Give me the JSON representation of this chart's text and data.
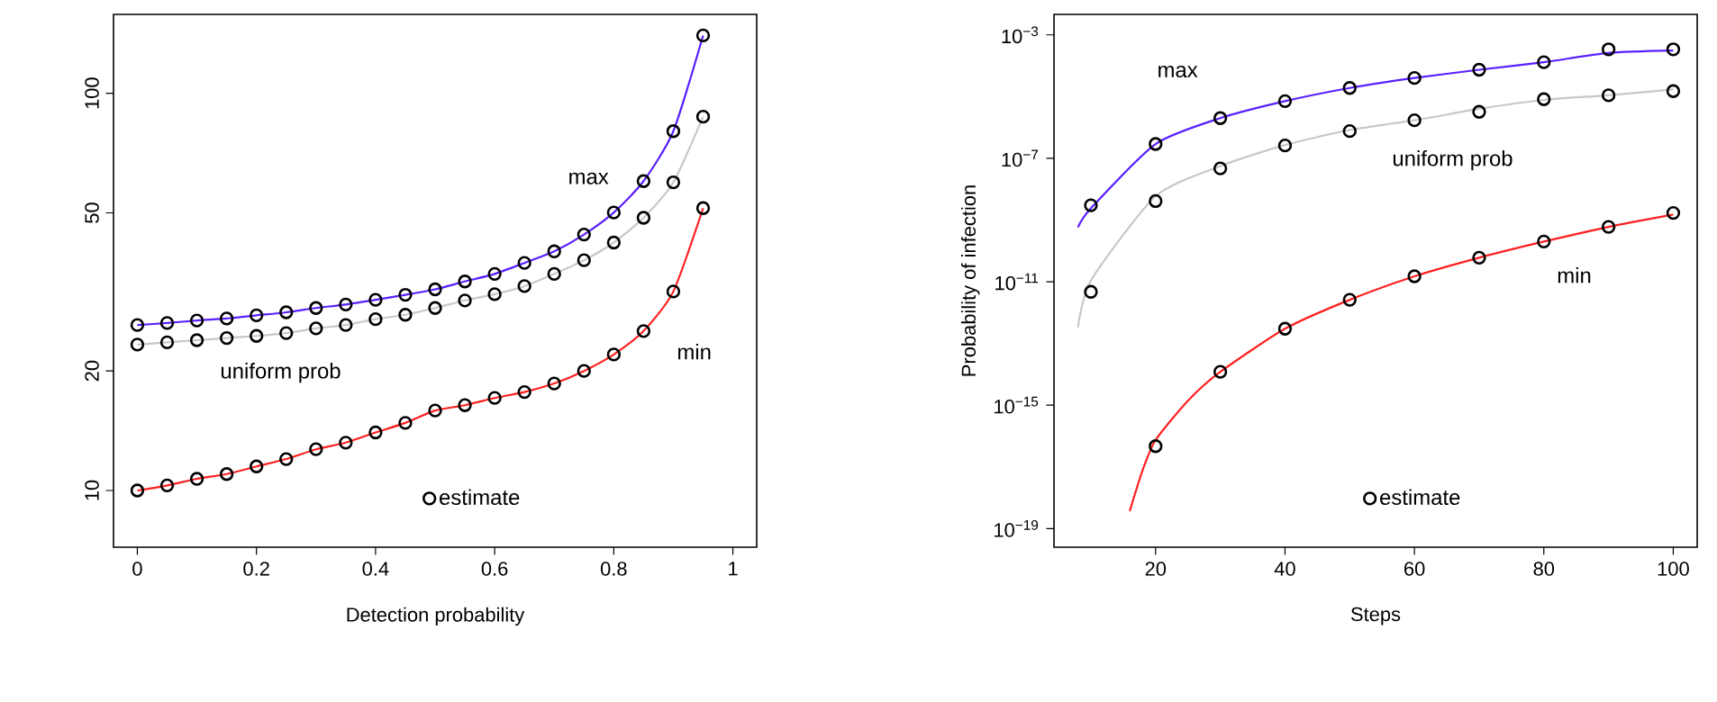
{
  "chart_data": [
    {
      "type": "line",
      "xlabel": "Detection probability",
      "log": "y",
      "legend": "bottom",
      "xlim": [
        -0.04,
        1.04
      ],
      "ylim": [
        7.2,
        158
      ],
      "xticks": [
        0,
        0.2,
        0.4,
        0.6,
        0.8,
        1
      ],
      "yticks": [
        10,
        20,
        50,
        100
      ],
      "series": [
        {
          "name": "max",
          "color": "#5a1fff",
          "marker": "none",
          "line_style": "solid",
          "x": [
            0,
            0.05,
            0.1,
            0.15,
            0.2,
            0.25,
            0.3,
            0.35,
            0.4,
            0.45,
            0.5,
            0.55,
            0.6,
            0.65,
            0.7,
            0.75,
            0.8,
            0.85,
            0.9,
            0.95
          ],
          "values": [
            26.1,
            26.4,
            26.8,
            27.1,
            27.6,
            28.1,
            28.8,
            29.4,
            30.2,
            31.1,
            32.1,
            33.6,
            35.1,
            37.4,
            40.0,
            44.1,
            50.1,
            60.1,
            80.3,
            139.8
          ]
        },
        {
          "name": "uniform prob",
          "color": "#c8c8c8",
          "marker": "none",
          "line_style": "solid",
          "x": [
            0,
            0.05,
            0.1,
            0.15,
            0.2,
            0.25,
            0.3,
            0.35,
            0.4,
            0.45,
            0.5,
            0.55,
            0.6,
            0.65,
            0.7,
            0.75,
            0.8,
            0.85,
            0.9,
            0.95
          ],
          "values": [
            23.3,
            23.6,
            23.9,
            24.2,
            24.5,
            24.9,
            25.6,
            26.1,
            27.0,
            27.7,
            28.8,
            30.1,
            31.2,
            32.7,
            35.1,
            38.0,
            42.1,
            48.6,
            59.7,
            87.3
          ]
        },
        {
          "name": "min",
          "color": "#ff2020",
          "marker": "none",
          "line_style": "solid",
          "x": [
            0,
            0.05,
            0.1,
            0.15,
            0.2,
            0.25,
            0.3,
            0.35,
            0.4,
            0.45,
            0.5,
            0.55,
            0.6,
            0.65,
            0.7,
            0.75,
            0.8,
            0.85,
            0.9,
            0.95
          ],
          "values": [
            10.0,
            10.3,
            10.7,
            11.0,
            11.5,
            12.0,
            12.7,
            13.2,
            14.0,
            14.8,
            15.9,
            16.4,
            17.1,
            17.7,
            18.6,
            20.0,
            22.0,
            25.2,
            31.7,
            51.4
          ]
        },
        {
          "name": "estimate",
          "type": "scatter",
          "color": "#000000",
          "marker": "circle",
          "x": [
            0,
            0.05,
            0.1,
            0.15,
            0.2,
            0.25,
            0.3,
            0.35,
            0.4,
            0.45,
            0.5,
            0.55,
            0.6,
            0.65,
            0.7,
            0.75,
            0.8,
            0.85,
            0.9,
            0.95,
            0,
            0.05,
            0.1,
            0.15,
            0.2,
            0.25,
            0.3,
            0.35,
            0.4,
            0.45,
            0.5,
            0.55,
            0.6,
            0.65,
            0.7,
            0.75,
            0.8,
            0.85,
            0.9,
            0.95,
            0,
            0.05,
            0.1,
            0.15,
            0.2,
            0.25,
            0.3,
            0.35,
            0.4,
            0.45,
            0.5,
            0.55,
            0.6,
            0.65,
            0.7,
            0.75,
            0.8,
            0.85,
            0.9,
            0.95
          ],
          "values": [
            26.1,
            26.4,
            26.8,
            27.1,
            27.6,
            28.1,
            28.8,
            29.4,
            30.2,
            31.1,
            32.1,
            33.6,
            35.1,
            37.4,
            40.0,
            44.1,
            50.1,
            60.1,
            80.3,
            139.8,
            23.3,
            23.6,
            23.9,
            24.2,
            24.5,
            24.9,
            25.6,
            26.1,
            27.0,
            27.7,
            28.8,
            30.1,
            31.2,
            32.7,
            35.1,
            38.0,
            42.1,
            48.6,
            59.7,
            87.3,
            10.0,
            10.3,
            10.7,
            11.0,
            11.5,
            12.0,
            12.7,
            13.2,
            14.0,
            14.8,
            15.9,
            16.4,
            17.1,
            17.7,
            18.6,
            20.0,
            22.0,
            25.2,
            31.7,
            51.4
          ]
        }
      ]
    },
    {
      "type": "line",
      "xlabel": "Steps",
      "ylabel": "Probability of infection",
      "log": "y",
      "legend": "bottom",
      "xlim": [
        4.3,
        103.7
      ],
      "ylim": [
        2.5e-20,
        0.0046
      ],
      "xticks": [
        20,
        40,
        60,
        80,
        100
      ],
      "yticks": [
        {
          "value": 1e-19,
          "label": "10$^{−19}$"
        },
        {
          "value": 1e-15,
          "label": "10$^{−15}$"
        },
        {
          "value": 1e-11,
          "label": "10$^{−11}$"
        },
        {
          "value": 1e-07,
          "label": "10$^{−7}$"
        },
        {
          "value": 0.001,
          "label": "10$^{−3}$"
        }
      ],
      "series": [
        {
          "name": "max",
          "color": "#5a1fff",
          "marker": "none",
          "line_style": "solid",
          "x": [
            8,
            10,
            20,
            30,
            40,
            50,
            60,
            70,
            80,
            90,
            100
          ],
          "values": [
            5.8e-10,
            2.4e-09,
            2.9e-07,
            2e-06,
            7.1e-06,
            1.9e-05,
            4e-05,
            7.4e-05,
            0.00013,
            0.00026,
            0.00031
          ]
        },
        {
          "name": "uniform prob",
          "color": "#c8c8c8",
          "marker": "none",
          "line_style": "solid",
          "x": [
            8,
            10,
            20,
            30,
            40,
            50,
            60,
            70,
            80,
            90,
            100
          ],
          "values": [
            3.3e-13,
            1.1e-11,
            5.9e-09,
            5.6e-08,
            2.7e-07,
            8.3e-07,
            1.7e-06,
            4e-06,
            7.8e-06,
            1.1e-05,
            1.7e-05
          ]
        },
        {
          "name": "min",
          "color": "#ff2020",
          "marker": "none",
          "line_style": "solid",
          "x": [
            16,
            18,
            20,
            25,
            30,
            40,
            50,
            60,
            70,
            80,
            90,
            100
          ],
          "values": [
            3.7e-19,
            7.9e-18,
            7.4e-17,
            1.4e-15,
            1.2e-14,
            3e-13,
            2.6e-12,
            1.5e-11,
            6e-11,
            2e-10,
            6e-10,
            1.5e-09
          ]
        },
        {
          "name": "estimate",
          "type": "scatter",
          "color": "#000000",
          "marker": "circle",
          "x": [
            10,
            20,
            30,
            40,
            50,
            60,
            70,
            80,
            90,
            100,
            10,
            20,
            30,
            40,
            50,
            60,
            70,
            80,
            90,
            100,
            20,
            30,
            40,
            50,
            60,
            70,
            80,
            90,
            100
          ],
          "values": [
            3e-09,
            2.9e-07,
            2e-06,
            7.1e-06,
            1.9e-05,
            4e-05,
            7.4e-05,
            0.00013,
            0.00034,
            0.00034,
            4.7e-12,
            4.1e-09,
            4.7e-08,
            2.6e-07,
            7.6e-07,
            1.7e-06,
            3.2e-06,
            8.2e-06,
            1.1e-05,
            1.5e-05,
            4.7e-17,
            1.2e-14,
            3e-13,
            2.6e-12,
            1.5e-11,
            6e-11,
            2e-10,
            6e-10,
            1.7e-09
          ]
        }
      ]
    }
  ]
}
